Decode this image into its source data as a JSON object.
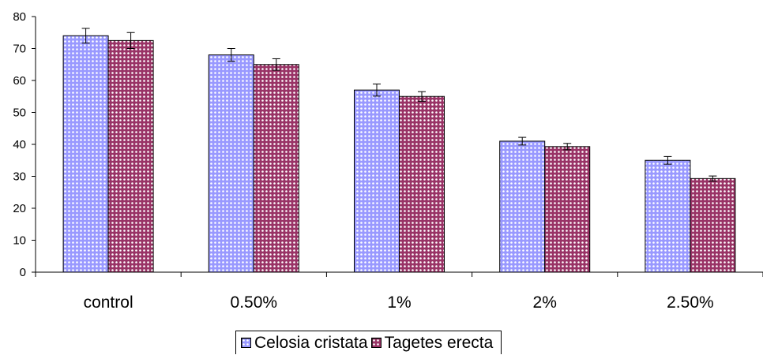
{
  "chart_data": {
    "type": "bar",
    "title": "",
    "xlabel": "",
    "ylabel": "",
    "categories": [
      "control",
      "0.50%",
      "1%",
      "2%",
      "2.50%"
    ],
    "ylim": [
      0,
      80
    ],
    "yticks": [
      0,
      10,
      20,
      30,
      40,
      50,
      60,
      70,
      80
    ],
    "grid": false,
    "legend_position": "bottom",
    "series": [
      {
        "name": "Celosia cristata",
        "color": "#9999ff",
        "pattern_dot": "#ffffff",
        "values": [
          74,
          68,
          57,
          41,
          35
        ],
        "errors": [
          2.3,
          2.0,
          1.9,
          1.2,
          1.2
        ]
      },
      {
        "name": "Tagetes erecta",
        "color": "#993366",
        "pattern_dot": "#ffffff",
        "values": [
          72.5,
          65,
          55,
          39.3,
          29.3
        ],
        "errors": [
          2.5,
          1.8,
          1.5,
          1.0,
          0.8
        ]
      }
    ]
  }
}
